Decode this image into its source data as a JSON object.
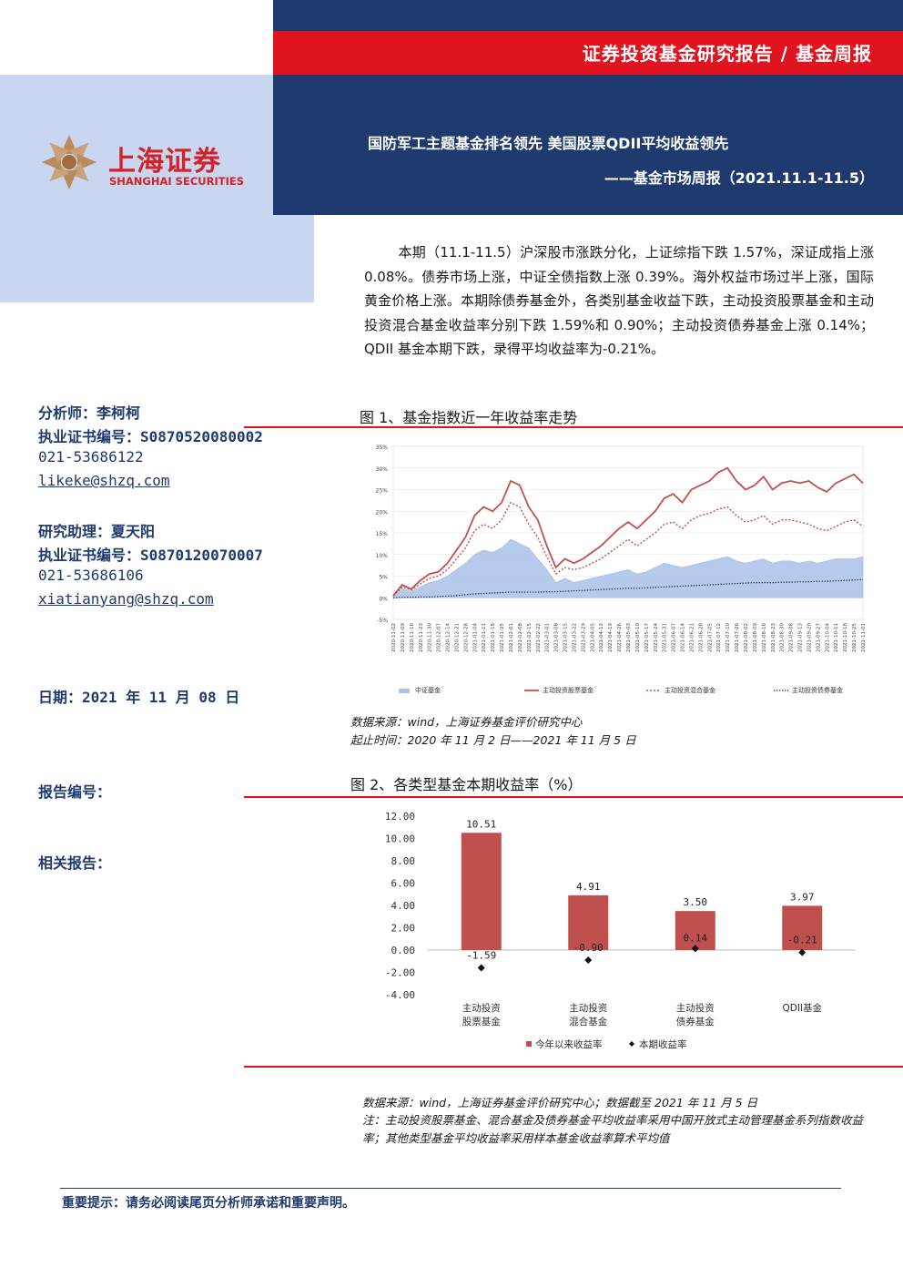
{
  "header": {
    "report_type": "证券投资基金研究报告 / 基金周报",
    "title": "国防军工主题基金排名领先 美国股票QDII平均收益领先",
    "subtitle": "——基金市场周报（2021.11.1-11.5）"
  },
  "logo": {
    "cn": "上海证券",
    "en": "SHANGHAI SECURITIES"
  },
  "summary": "本期（11.1-11.5）沪深股市涨跌分化，上证综指下跌 1.57%，深证成指上涨 0.08%。债券市场上涨，中证全债指数上涨 0.39%。海外权益市场过半上涨，国际黄金价格上涨。本期除债券基金外，各类别基金收益下跌，主动投资股票基金和主动投资混合基金收益率分别下跌 1.59%和 0.90%；主动投资债券基金上涨 0.14%；QDII 基金本期下跌，录得平均收益率为-0.21%。",
  "sidebar": {
    "analyst": "分析师：李柯柯",
    "analyst_cert": "执业证书编号：S0870520080002",
    "analyst_phone": "021-53686122",
    "analyst_email": "likeke@shzq.com",
    "assistant": "研究助理：夏天阳",
    "assistant_cert": "执业证书编号：S0870120070007",
    "assistant_phone": "021-53686106",
    "assistant_email": "xiatianyang@shzq.com",
    "date": "日期：2021 年 11 月 08 日",
    "report_no": "报告编号：",
    "related": "相关报告："
  },
  "fig1": {
    "title": "图 1、基金指数近一年收益率走势",
    "source": "数据来源：wind，上海证券基金评价研究中心",
    "period": "起止时间：2020 年 11 月 2 日——2021 年 11 月 5 日"
  },
  "fig2": {
    "title": "图 2、各类型基金本期收益率（%）",
    "source": "数据来源：wind，上海证券基金评价研究中心；数据截至 2021 年 11 月 5 日",
    "note": "注：主动投资股票基金、混合基金及债券基金平均收益率采用中国开放式主动管理基金系列指数收益率；其他类型基金平均收益率采用样本基金收益率算术平均值"
  },
  "footer": {
    "notice": "重要提示：请务必阅读尾页分析师承诺和重要声明。"
  },
  "colors": {
    "navy": "#1f3a6e",
    "red": "#e0141e",
    "light_blue": "#c9d6ef",
    "bar_red": "#c0504d"
  },
  "chart_data": [
    {
      "type": "line",
      "ylim": [
        -5,
        35
      ],
      "yticks": [
        "35%",
        "30%",
        "25%",
        "20%",
        "15%",
        "10%",
        "5%",
        "0%",
        "-5%"
      ],
      "x": [
        "2020-11-02",
        "2020-11-09",
        "2020-11-16",
        "2020-11-23",
        "2020-11-30",
        "2020-12-07",
        "2020-12-14",
        "2020-12-21",
        "2020-12-28",
        "2021-01-04",
        "2021-01-11",
        "2021-01-18",
        "2021-01-25",
        "2021-02-01",
        "2021-02-08",
        "2021-02-15",
        "2021-02-22",
        "2021-03-01",
        "2021-03-08",
        "2021-03-15",
        "2021-03-22",
        "2021-03-29",
        "2021-04-05",
        "2021-04-12",
        "2021-04-19",
        "2021-04-26",
        "2021-05-03",
        "2021-05-10",
        "2021-05-17",
        "2021-05-24",
        "2021-05-31",
        "2021-06-07",
        "2021-06-14",
        "2021-06-21",
        "2021-06-28",
        "2021-07-05",
        "2021-07-12",
        "2021-07-19",
        "2021-07-26",
        "2021-08-02",
        "2021-08-09",
        "2021-08-16",
        "2021-08-23",
        "2021-08-30",
        "2021-09-06",
        "2021-09-13",
        "2021-09-20",
        "2021-09-27",
        "2021-10-04",
        "2021-10-11",
        "2021-10-18",
        "2021-10-25",
        "2021-11-01"
      ],
      "series": [
        {
          "name": "中证基金",
          "values": [
            0.5,
            2.0,
            1.5,
            2.5,
            3.5,
            4.0,
            5.0,
            6.5,
            8.0,
            10.0,
            11.0,
            10.5,
            11.5,
            13.5,
            12.5,
            11.5,
            9.0,
            6.5,
            3.5,
            4.5,
            3.5,
            4.0,
            4.5,
            5.0,
            5.5,
            6.0,
            6.5,
            5.5,
            6.0,
            7.0,
            8.0,
            7.5,
            7.0,
            7.5,
            8.0,
            8.5,
            9.0,
            9.5,
            8.5,
            8.0,
            8.5,
            9.0,
            8.0,
            8.5,
            8.5,
            8.0,
            8.5,
            8.0,
            8.5,
            9.0,
            9.0,
            9.0,
            9.5
          ]
        },
        {
          "name": "主动投资股票基金",
          "values": [
            0.5,
            3.0,
            2.0,
            4.0,
            5.5,
            6.0,
            8.0,
            11.0,
            14.0,
            19.0,
            21.0,
            20.0,
            22.0,
            27.0,
            26.0,
            21.0,
            18.0,
            12.0,
            7.0,
            9.0,
            8.0,
            9.0,
            10.5,
            12.0,
            14.0,
            16.0,
            17.5,
            16.0,
            18.0,
            20.0,
            23.0,
            24.0,
            22.0,
            25.0,
            26.0,
            27.0,
            29.0,
            30.0,
            27.0,
            25.0,
            26.0,
            28.0,
            25.0,
            26.5,
            27.0,
            26.5,
            27.0,
            25.5,
            24.5,
            26.5,
            27.5,
            28.5,
            26.5
          ]
        },
        {
          "name": "主动投资混合基金",
          "values": [
            0.4,
            2.5,
            1.8,
            3.2,
            4.5,
            5.0,
            6.5,
            9.0,
            11.5,
            15.5,
            17.0,
            16.0,
            18.0,
            22.0,
            21.0,
            17.0,
            14.0,
            9.5,
            5.5,
            7.0,
            6.5,
            7.0,
            8.0,
            9.0,
            10.5,
            12.0,
            13.5,
            12.0,
            13.5,
            15.0,
            17.0,
            17.5,
            16.0,
            18.0,
            19.0,
            19.5,
            20.5,
            21.0,
            19.0,
            17.5,
            18.0,
            19.0,
            17.0,
            18.0,
            18.0,
            17.5,
            17.0,
            16.0,
            15.5,
            16.5,
            17.5,
            18.0,
            16.5
          ]
        },
        {
          "name": "主动投资债券基金",
          "values": [
            0.0,
            0.1,
            0.1,
            0.2,
            0.2,
            0.3,
            0.4,
            0.5,
            0.7,
            0.9,
            1.0,
            1.1,
            1.2,
            1.3,
            1.3,
            1.3,
            1.3,
            1.4,
            1.4,
            1.5,
            1.6,
            1.7,
            1.8,
            1.9,
            2.0,
            2.1,
            2.2,
            2.2,
            2.3,
            2.4,
            2.5,
            2.6,
            2.7,
            2.8,
            2.9,
            3.0,
            3.1,
            3.2,
            3.3,
            3.4,
            3.5,
            3.5,
            3.5,
            3.6,
            3.6,
            3.7,
            3.7,
            3.8,
            3.8,
            3.9,
            4.0,
            4.1,
            4.2
          ]
        }
      ]
    },
    {
      "type": "bar",
      "categories": [
        [
          "主动投资",
          "股票基金"
        ],
        [
          "主动投资",
          "混合基金"
        ],
        [
          "主动投资",
          "债券基金"
        ],
        [
          "QDII基金"
        ]
      ],
      "ylim": [
        -4,
        12
      ],
      "yticks": [
        "12.00",
        "10.00",
        "8.00",
        "6.00",
        "4.00",
        "2.00",
        "0.00",
        "-2.00",
        "-4.00"
      ],
      "series": [
        {
          "name": "今年以来收益率",
          "values": [
            10.51,
            4.91,
            3.5,
            3.97
          ],
          "labels": [
            "10.51",
            "4.91",
            "3.50",
            "3.97"
          ]
        },
        {
          "name": "本期收益率",
          "values": [
            -1.59,
            -0.9,
            0.14,
            -0.21
          ],
          "labels": [
            "-1.59",
            "-0.90",
            "0.14",
            "-0.21"
          ]
        }
      ]
    }
  ]
}
